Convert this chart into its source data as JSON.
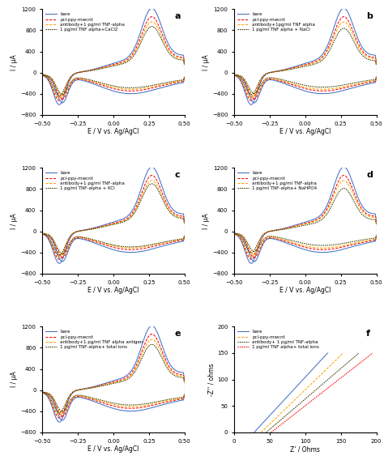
{
  "panels": [
    "a",
    "b",
    "c",
    "d",
    "e",
    "f"
  ],
  "xlim_cv": [
    -0.5,
    0.5
  ],
  "ylim_cv": [
    -800,
    1200
  ],
  "xlabel_cv": "E / V vs. Ag/AgCl",
  "ylabel_cv": "I / μA",
  "legend_label4_a": "1 pg/ml TNF alpha+CaCl2",
  "legend_label4_b": "1 pg/ml TNF alpha + NaCl",
  "legend_label4_c": "1 pg/ml TNF-alpha + KCl",
  "legend_label4_d": "1 pg/ml TNF-alpha+ NaHPO4",
  "legend_labels_e3": "antibody+1 pg/ml TNF alpha antigen",
  "legend_labels_e4": "1 pg/ml TNF-alpha+ total ions",
  "legend_labels_f3": "antibody+ 1 pg/ml TNF-alpha",
  "legend_labels_f4": "1 pg/ml TNF alpha+ total ions",
  "colors": {
    "bare": "#4472C4",
    "pcl": "#FF0000",
    "antibody": "#FFA500",
    "ion": "#3B3B00"
  },
  "xlabel_f": "Z' / Ohms",
  "ylabel_f": "-Z'' / ohms",
  "xlim_f": [
    0,
    200
  ],
  "ylim_f": [
    0,
    200
  ],
  "yticks_f": [
    0,
    50,
    100,
    150,
    200
  ]
}
